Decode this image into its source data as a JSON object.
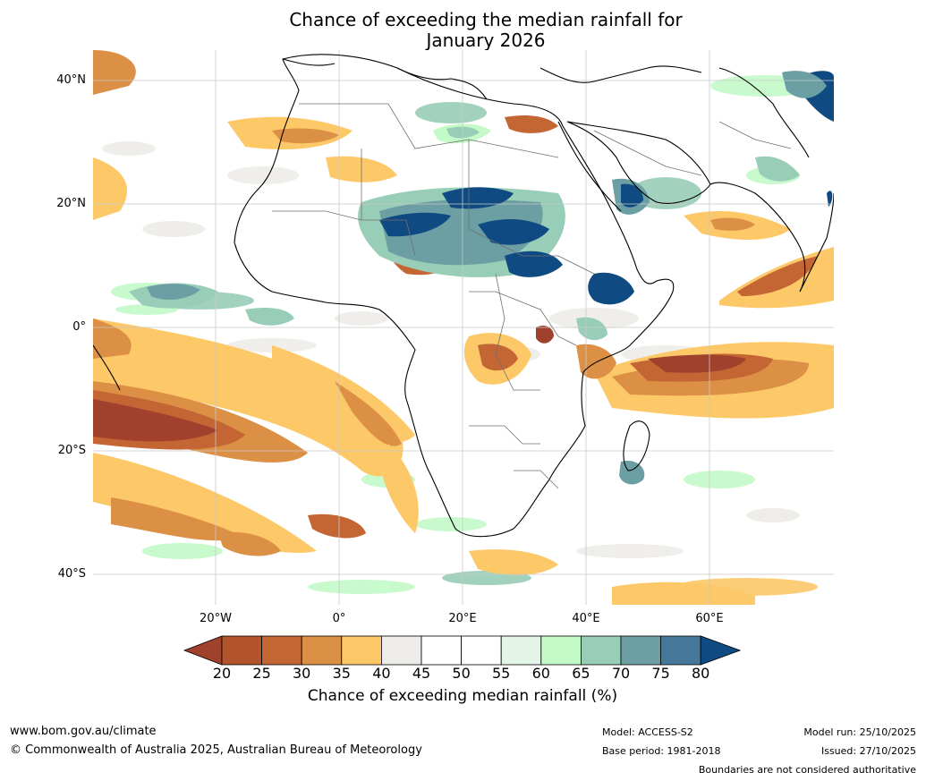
{
  "title": {
    "line1": "Chance of exceeding the median rainfall for",
    "line2": "January 2026"
  },
  "axes": {
    "lat_labels": [
      "40°N",
      "20°N",
      "0°",
      "20°S",
      "40°S"
    ],
    "lon_labels": [
      "20°W",
      "0°",
      "20°E",
      "40°E",
      "60°E"
    ]
  },
  "colorbar": {
    "ticks": [
      "20",
      "25",
      "30",
      "35",
      "40",
      "45",
      "50",
      "55",
      "60",
      "65",
      "70",
      "75",
      "80"
    ],
    "colors": [
      "#a0412d",
      "#b2532c",
      "#c46534",
      "#dc9046",
      "#fcc868",
      "#eeece8",
      "#ffffff",
      "#ffffff",
      "#e3f5e6",
      "#c3fac8",
      "#98cdb7",
      "#6c9fa4",
      "#44779a",
      "#0f4b82"
    ],
    "label": "Chance of exceeding median rainfall (%)"
  },
  "footer": {
    "website": "www.bom.gov.au/climate",
    "copyright": "© Commonwealth of Australia 2025, Australian Bureau of Meteorology",
    "model": "Model: ACCESS-S2",
    "base_period": "Base period: 1981-2018",
    "model_run": "Model run: 25/10/2025",
    "issued": "Issued: 27/10/2025",
    "disclaimer": "Boundaries are not considered authoritative"
  }
}
